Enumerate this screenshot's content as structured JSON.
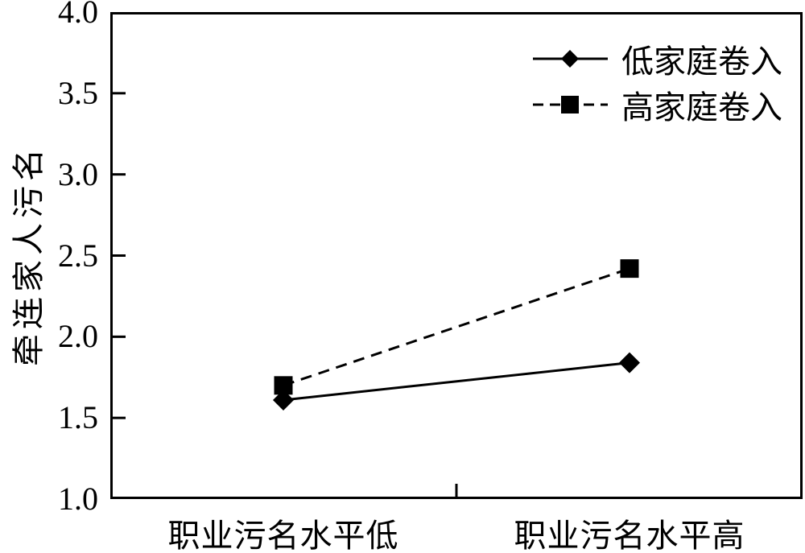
{
  "chart_data": {
    "type": "line",
    "title": "",
    "xlabel": "",
    "ylabel": "牵连家人污名",
    "categories": [
      "职业污名水平低",
      "职业污名水平高"
    ],
    "series": [
      {
        "name": "低家庭卷入",
        "values": [
          1.61,
          1.84
        ],
        "line_style": "solid",
        "marker": "diamond",
        "color": "#000000"
      },
      {
        "name": "高家庭卷入",
        "values": [
          1.7,
          2.42
        ],
        "line_style": "dashed",
        "marker": "square",
        "color": "#000000"
      }
    ],
    "ylim": [
      1.0,
      4.0
    ],
    "yticks": [
      1.0,
      1.5,
      2.0,
      2.5,
      3.0,
      3.5,
      4.0
    ],
    "grid": false,
    "legend_position": "top-right-inside",
    "background_color": "#ffffff",
    "foreground_color": "#000000"
  }
}
